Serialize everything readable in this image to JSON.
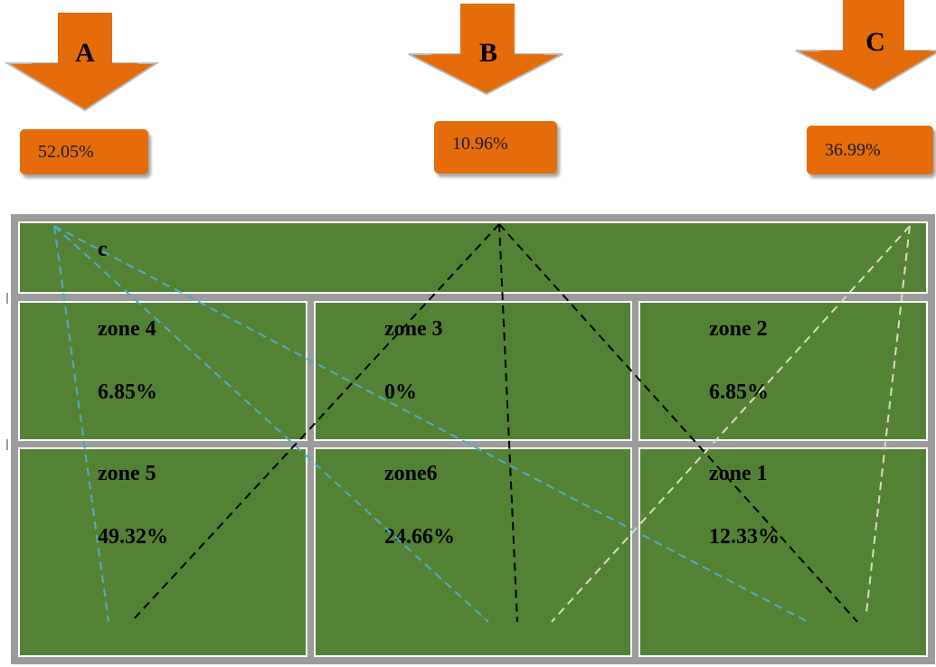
{
  "goals": [
    {
      "letter": "A",
      "percent": "52.05%"
    },
    {
      "letter": "B",
      "percent": "10.96%"
    },
    {
      "letter": "C",
      "percent": "36.99%"
    }
  ],
  "top_zone": {
    "label": "c"
  },
  "zones": [
    {
      "name": "zone 4",
      "percent": "6.85%"
    },
    {
      "name": "zone 3",
      "percent": "0%"
    },
    {
      "name": "zone 2",
      "percent": "6.85%"
    },
    {
      "name": "zone 5",
      "percent": "49.32%"
    },
    {
      "name": "zone6",
      "percent": "24.66%"
    },
    {
      "name": "zone 1",
      "percent": "12.33%"
    }
  ],
  "colors": {
    "arrow": "#e46c0a",
    "field": "#548235",
    "line_a": "#4bacc6",
    "line_b": "#000000",
    "line_c": "#ddd9c3"
  }
}
